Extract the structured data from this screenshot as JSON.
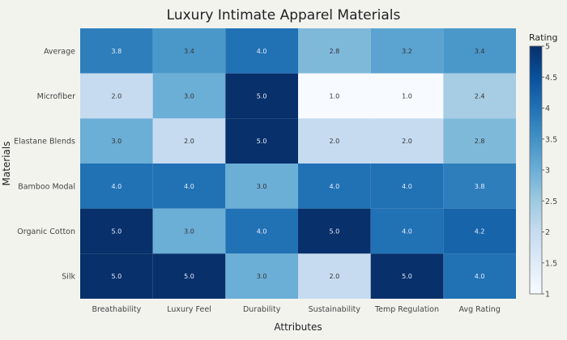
{
  "chart_data": {
    "type": "heatmap",
    "title": "Luxury Intimate Apparel Materials",
    "xlabel": "Attributes",
    "ylabel": "Materials",
    "x_categories": [
      "Breathability",
      "Luxury Feel",
      "Durability",
      "Sustainability",
      "Temp Regulation",
      "Avg Rating"
    ],
    "y_categories": [
      "Average",
      "Microfiber",
      "Elastane Blends",
      "Bamboo Modal",
      "Organic Cotton",
      "Silk"
    ],
    "values": [
      [
        3.8,
        3.4,
        4.0,
        2.8,
        3.2,
        3.4
      ],
      [
        2.0,
        3.0,
        5.0,
        1.0,
        1.0,
        2.4
      ],
      [
        3.0,
        2.0,
        5.0,
        2.0,
        2.0,
        2.8
      ],
      [
        4.0,
        4.0,
        3.0,
        4.0,
        4.0,
        3.8
      ],
      [
        5.0,
        3.0,
        4.0,
        5.0,
        4.0,
        4.2
      ],
      [
        5.0,
        5.0,
        3.0,
        2.0,
        5.0,
        4.0
      ]
    ],
    "colorscale": "Blues",
    "colorbar": {
      "title": "Rating",
      "range": [
        1,
        5
      ],
      "ticks": [
        "1",
        "1.5",
        "2",
        "2.5",
        "3",
        "3.5",
        "4",
        "4.5",
        "5"
      ]
    }
  }
}
